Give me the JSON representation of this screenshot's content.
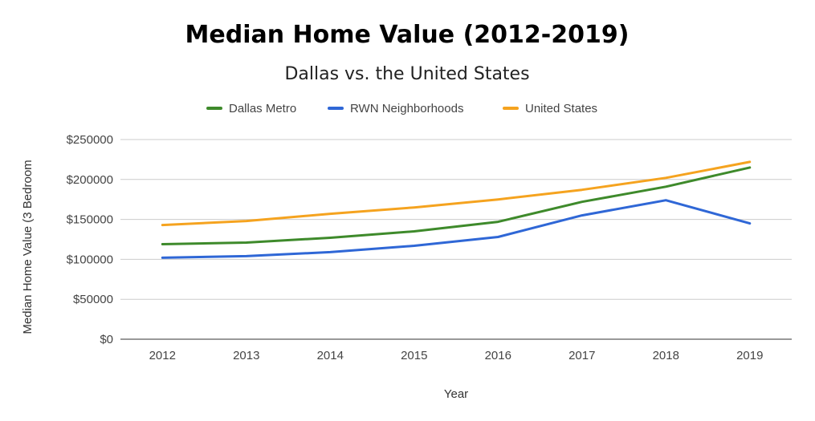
{
  "chart_data": {
    "type": "line",
    "title": "Median Home Value (2012-2019)",
    "subtitle": "Dallas vs. the United States",
    "xlabel": "Year",
    "ylabel": "Median Home Value (3 Bedroom",
    "categories": [
      "2012",
      "2013",
      "2014",
      "2015",
      "2016",
      "2017",
      "2018",
      "2019"
    ],
    "ylim": [
      0,
      250000
    ],
    "yticks": [
      {
        "value": 0,
        "label": "$0"
      },
      {
        "value": 50000,
        "label": "$50000"
      },
      {
        "value": 100000,
        "label": "$100000"
      },
      {
        "value": 150000,
        "label": "$150000"
      },
      {
        "value": 200000,
        "label": "$200000"
      },
      {
        "value": 250000,
        "label": "$250000"
      }
    ],
    "grid": true,
    "legend_position": "top",
    "series": [
      {
        "name": "Dallas Metro",
        "color": "#3e8a2b",
        "values": [
          119000,
          121000,
          127000,
          135000,
          147000,
          172000,
          191000,
          215000
        ]
      },
      {
        "name": "RWN Neighborhoods",
        "color": "#2f67d6",
        "values": [
          102000,
          104000,
          109000,
          117000,
          128000,
          155000,
          174000,
          145000
        ]
      },
      {
        "name": "United States",
        "color": "#f5a31f",
        "values": [
          143000,
          148000,
          157000,
          165000,
          175000,
          187000,
          202000,
          222000
        ]
      }
    ]
  }
}
